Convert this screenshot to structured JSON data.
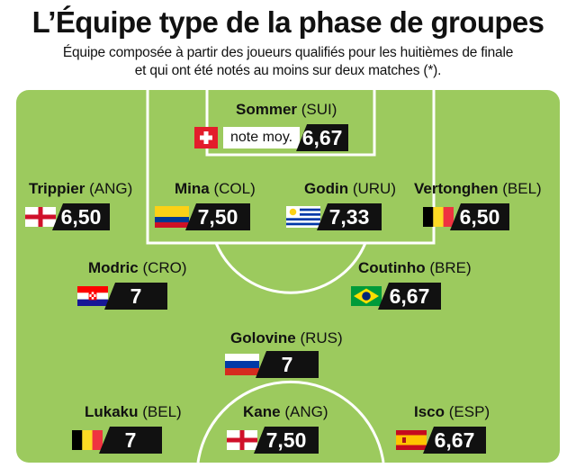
{
  "header": {
    "title": "L’Équipe type de la phase de groupes",
    "subtitle_line1": "Équipe composée à partir des joueurs qualifiés pour les huitièmes de finale",
    "subtitle_line2": "et qui ont été notés au moins sur deux matches (*)."
  },
  "colors": {
    "pitch": "#9cca5e",
    "lines": "#ffffff",
    "rating_bg": "#111111"
  },
  "goalkeeper": {
    "name": "Sommer",
    "country": "(SUI)",
    "label": "note moy.",
    "rating": "6,67",
    "flag": "switzerland-flag"
  },
  "defenders": [
    {
      "name": "Trippier",
      "country": "(ANG)",
      "rating": "6,50",
      "flag": "england-flag"
    },
    {
      "name": "Mina",
      "country": "(COL)",
      "rating": "7,50",
      "flag": "colombia-flag"
    },
    {
      "name": "Godin",
      "country": "(URU)",
      "rating": "7,33",
      "flag": "uruguay-flag"
    },
    {
      "name": "Vertonghen",
      "country": "(BEL)",
      "rating": "6,50",
      "flag": "belgium-flag"
    }
  ],
  "midfielders": [
    {
      "name": "Modric",
      "country": "(CRO)",
      "rating": "7",
      "flag": "croatia-flag"
    },
    {
      "name": "Coutinho",
      "country": "(BRE)",
      "rating": "6,67",
      "flag": "brazil-flag"
    },
    {
      "name": "Golovine",
      "country": "(RUS)",
      "rating": "7",
      "flag": "russia-flag"
    }
  ],
  "forwards": [
    {
      "name": "Lukaku",
      "country": "(BEL)",
      "rating": "7",
      "flag": "belgium-flag"
    },
    {
      "name": "Kane",
      "country": "(ANG)",
      "rating": "7,50",
      "flag": "england-flag"
    },
    {
      "name": "Isco",
      "country": "(ESP)",
      "rating": "6,67",
      "flag": "spain-flag"
    }
  ]
}
